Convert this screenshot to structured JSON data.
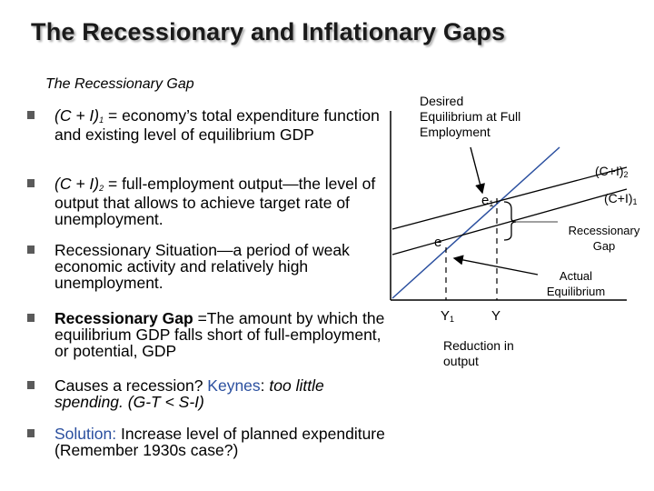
{
  "title": "The Recessionary and Inflationary Gaps",
  "subtitle": "The Recessionary Gap",
  "bullets": {
    "b1": {
      "term": "(C + I)",
      "sub": "1",
      "rest": " = economy’s total expenditure function and existing level of equilibrium GDP"
    },
    "b2": {
      "term": "(C + I)",
      "sub": "2",
      "rest": " = full-employment output—the level of output that allows to achieve target rate of unemployment."
    },
    "b3": {
      "text": "Recessionary Situation—a period of weak economic activity and relatively high unemployment."
    },
    "b4": {
      "bold": "Recessionary Gap",
      "rest": " =The amount by which the equilibrium GDP falls short of full-employment, or potential, GDP"
    },
    "b5": {
      "q": "Causes a recession? ",
      "keynes": "Keynes",
      "colon": ": ",
      "it1": "too little spending. (G-T < S-I)"
    },
    "b6": {
      "label": "Solution:",
      "rest": " Increase level of planned expenditure (Remember 1930s case?)"
    }
  },
  "diagram": {
    "desired_line1": "Desired",
    "desired_line2": "Equilibrium at Full",
    "desired_line3": "Employment",
    "c2_label": "(C+I)",
    "c2_sub": "2",
    "c1_label": "(C+I)",
    "c1_sub": "1",
    "e1_label": "e",
    "e1_sub": "1",
    "e_label": "e",
    "gap_line1": "Recessionary",
    "gap_line2": "Gap",
    "actual_line1": "Actual",
    "actual_line2": "Equilibrium",
    "y1_label": "Y",
    "y1_sub": "1",
    "y_label": "Y",
    "reduction_line1": "Reduction in",
    "reduction_line2": "output",
    "colors": {
      "forty_five_line": "#2a4f9f",
      "axes": "#000000",
      "curves": "#000000"
    }
  }
}
